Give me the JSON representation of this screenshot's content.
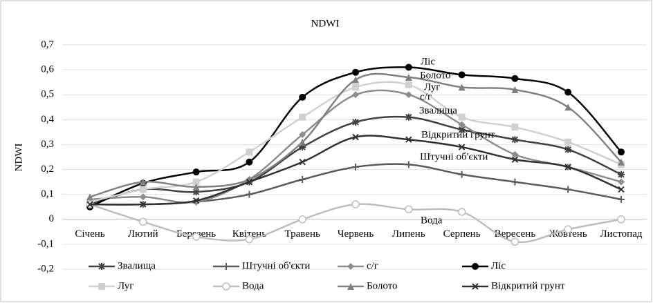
{
  "chart_data": {
    "type": "line",
    "title": "NDWI",
    "y_label": "NDWI",
    "categories": [
      "Січень",
      "Лютий",
      "Березень",
      "Квітень",
      "Травень",
      "Червень",
      "Липень",
      "Серпень",
      "Вересень",
      "Жовтень",
      "Листопад"
    ],
    "ylim": [
      -0.2,
      0.7
    ],
    "yticks": [
      {
        "value": -0.2,
        "label": "-0,2"
      },
      {
        "value": -0.1,
        "label": "-0,1"
      },
      0,
      {
        "value": 0.1,
        "label": "0,1"
      },
      {
        "value": 0.2,
        "label": "0,2"
      },
      {
        "value": 0.3,
        "label": "0,3"
      },
      {
        "value": 0.4,
        "label": "0,4"
      },
      {
        "value": 0.5,
        "label": "0,5"
      },
      {
        "value": 0.6,
        "label": "0,6"
      },
      {
        "value": 0.7,
        "label": "0,7"
      }
    ],
    "grid": true,
    "legend": "bottom",
    "series": [
      {
        "name": "Звалища",
        "color": "#404040",
        "marker": "asterisk",
        "values": [
          0.06,
          0.12,
          0.11,
          0.15,
          0.29,
          0.39,
          0.41,
          0.36,
          0.32,
          0.28,
          0.18
        ]
      },
      {
        "name": "Штучні об'єкти",
        "color": "#5a5a5a",
        "marker": "plus",
        "values": [
          0.06,
          0.06,
          0.07,
          0.1,
          0.16,
          0.21,
          0.22,
          0.18,
          0.15,
          0.12,
          0.08
        ]
      },
      {
        "name": "с/г",
        "color": "#8c8c8c",
        "marker": "diamond",
        "values": [
          0.08,
          0.09,
          0.07,
          0.16,
          0.34,
          0.5,
          0.5,
          0.38,
          0.26,
          0.21,
          0.15
        ]
      },
      {
        "name": "Ліс",
        "color": "#000000",
        "marker": "circle",
        "values": [
          0.05,
          0.145,
          0.19,
          0.23,
          0.49,
          0.59,
          0.61,
          0.58,
          0.565,
          0.51,
          0.27
        ]
      },
      {
        "name": "Луг",
        "color": "#d0d0d0",
        "marker": "square",
        "values": [
          0.07,
          0.12,
          0.15,
          0.27,
          0.41,
          0.53,
          0.54,
          0.41,
          0.37,
          0.31,
          0.22
        ]
      },
      {
        "name": "Вода",
        "color": "#bdbdbd",
        "marker": "circle-open",
        "values": [
          0.06,
          -0.01,
          -0.07,
          -0.08,
          0.0,
          0.06,
          0.04,
          0.03,
          -0.09,
          -0.04,
          0.0
        ]
      },
      {
        "name": "Болото",
        "color": "#808080",
        "marker": "triangle",
        "values": [
          0.09,
          0.15,
          0.13,
          0.16,
          0.31,
          0.56,
          0.57,
          0.53,
          0.52,
          0.45,
          0.23
        ]
      },
      {
        "name": "Відкритий грунт",
        "color": "#303030",
        "marker": "x",
        "values": [
          0.06,
          0.06,
          0.075,
          0.15,
          0.23,
          0.33,
          0.32,
          0.29,
          0.24,
          0.21,
          0.12
        ]
      }
    ],
    "annotations": [
      "Ліс",
      "Болото",
      "Луг",
      "с/г",
      "Звалища",
      "Відкритий грунт",
      "Штучні об'єкти",
      "Вода"
    ]
  }
}
